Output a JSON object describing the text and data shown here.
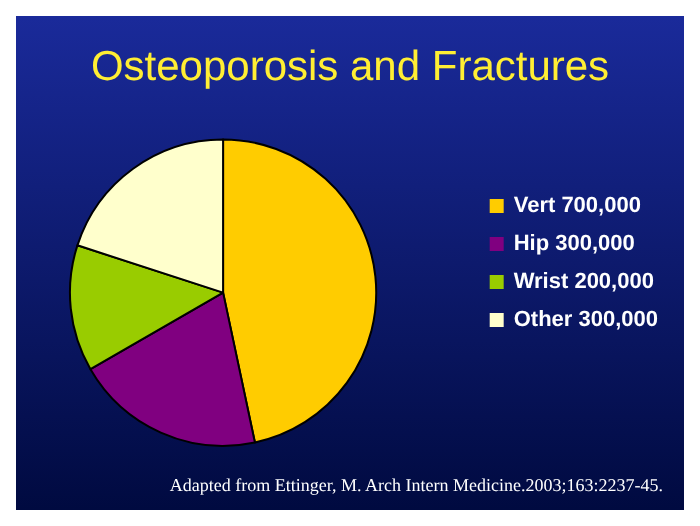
{
  "chart_data": {
    "type": "pie",
    "title": "Osteoporosis and Fractures",
    "categories": [
      "Vert 700,000",
      "Hip 300,000",
      "Wrist 200,000",
      "Other 300,000"
    ],
    "values": [
      700000,
      300000,
      200000,
      300000
    ],
    "colors": [
      "#ffcc00",
      "#800080",
      "#99cc00",
      "#ffffcc"
    ],
    "legend": "right",
    "annotations": [
      "Adapted from Ettinger, M. Arch Intern Medicine.2003;163:2237-45."
    ]
  }
}
